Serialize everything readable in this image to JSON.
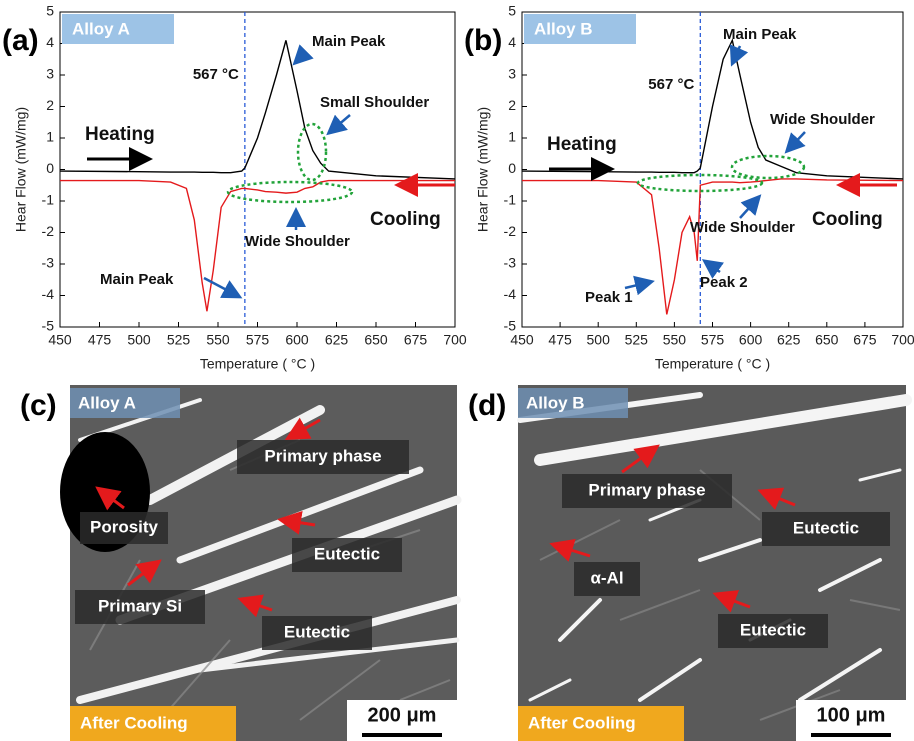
{
  "chart_data": [
    {
      "type": "line",
      "panel_label": "(a)",
      "alloy": "Alloy A",
      "x_label": "Temperature ( °C )",
      "y_label": "Hear Flow (mW/mg)",
      "x": [
        450,
        500,
        520,
        530,
        535,
        540,
        543,
        547,
        552,
        558,
        565,
        567,
        575,
        580,
        587,
        593,
        600,
        605,
        610,
        615,
        620,
        650,
        700
      ],
      "series": [
        {
          "name": "Heating",
          "color": "#000000",
          "values": [
            -0.05,
            -0.07,
            -0.08,
            -0.08,
            -0.08,
            -0.09,
            -0.09,
            -0.09,
            -0.1,
            -0.1,
            -0.05,
            0.05,
            1.0,
            1.8,
            3.0,
            4.1,
            2.5,
            1.3,
            0.6,
            0.2,
            -0.05,
            -0.2,
            -0.3
          ]
        },
        {
          "name": "Cooling",
          "color": "#e41a1c",
          "values": [
            -0.35,
            -0.35,
            -0.4,
            -0.6,
            -1.6,
            -3.6,
            -4.5,
            -3.2,
            -1.2,
            -0.7,
            -0.6,
            -0.6,
            -0.65,
            -0.7,
            -0.72,
            -0.75,
            -0.72,
            -0.6,
            -0.55,
            -0.4,
            -0.35,
            -0.35,
            -0.35
          ]
        }
      ],
      "vline": 567,
      "vline_label": "567 °C",
      "annotations": [
        "Main Peak",
        "Small Shoulder",
        "Wide Shoulder",
        "Main Peak"
      ],
      "xlim": [
        450,
        700
      ],
      "xticks": [
        450,
        475,
        500,
        525,
        550,
        575,
        600,
        625,
        650,
        675,
        700
      ],
      "ylim": [
        -5,
        5
      ],
      "yticks": [
        -5,
        -4,
        -3,
        -2,
        -1,
        0,
        1,
        2,
        3,
        4,
        5
      ]
    },
    {
      "type": "line",
      "panel_label": "(b)",
      "alloy": "Alloy B",
      "x_label": "Temperature ( °C )",
      "y_label": "Hear Flow (mW/mg)",
      "x": [
        450,
        500,
        525,
        535,
        540,
        545,
        550,
        555,
        560,
        563,
        565,
        567,
        575,
        582,
        588,
        593,
        600,
        605,
        610,
        620,
        630,
        650,
        700
      ],
      "series": [
        {
          "name": "Heating",
          "color": "#000000",
          "values": [
            -0.05,
            -0.07,
            -0.08,
            -0.08,
            -0.09,
            -0.09,
            -0.09,
            -0.1,
            -0.1,
            -0.1,
            -0.05,
            0.05,
            2.0,
            3.5,
            4.1,
            3.0,
            1.5,
            0.7,
            0.3,
            0.1,
            -0.1,
            -0.2,
            -0.3
          ]
        },
        {
          "name": "Cooling",
          "color": "#e41a1c",
          "values": [
            -0.35,
            -0.35,
            -0.4,
            -0.8,
            -2.5,
            -4.6,
            -3.5,
            -2.0,
            -1.5,
            -2.0,
            -2.9,
            -0.5,
            -0.4,
            -0.4,
            -0.4,
            -0.42,
            -0.4,
            -0.38,
            -0.35,
            -0.3,
            -0.3,
            -0.33,
            -0.35
          ]
        }
      ],
      "vline": 567,
      "vline_label": "567 °C",
      "annotations": [
        "Main Peak",
        "Wide Shoulder",
        "Wide Shoulder",
        "Peak 1",
        "Peak 2"
      ],
      "xlim": [
        450,
        700
      ],
      "xticks": [
        450,
        475,
        500,
        525,
        550,
        575,
        600,
        625,
        650,
        675,
        700
      ],
      "ylim": [
        -5,
        5
      ],
      "yticks": [
        -5,
        -4,
        -3,
        -2,
        -1,
        0,
        1,
        2,
        3,
        4,
        5
      ]
    }
  ],
  "micrographs": [
    {
      "panel_label": "(c)",
      "alloy": "Alloy A",
      "condition": "After Cooling",
      "scale": "200 μm",
      "annotations": [
        "Primary phase",
        "Porosity",
        "Eutectic",
        "Primary Si",
        "Eutectic"
      ]
    },
    {
      "panel_label": "(d)",
      "alloy": "Alloy B",
      "condition": "After Cooling",
      "scale": "100 μm",
      "annotations": [
        "Primary phase",
        "Eutectic",
        "α-Al",
        "Eutectic"
      ]
    }
  ]
}
